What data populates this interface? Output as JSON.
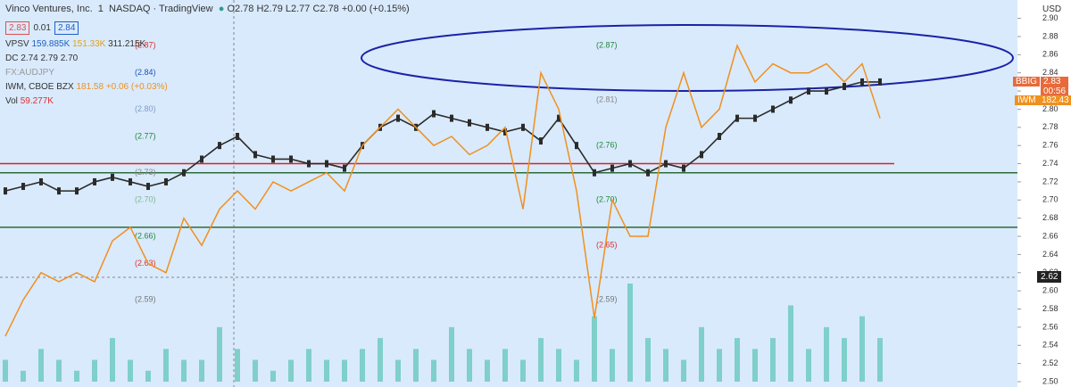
{
  "header": {
    "symbol": "Vinco Ventures, Inc.",
    "interval": "1",
    "exchange": "NASDAQ · TradingView",
    "ohlc": "O2.78 H2.79 L2.77 C2.78 +0.00 (+0.15%)",
    "bid": "2.83",
    "spread": "0.01",
    "ask": "2.84",
    "currency": "USD"
  },
  "indicators": {
    "vpsv": [
      "VPSV",
      "159.885K",
      "151.33K",
      "311.215K"
    ],
    "dc": [
      "DC",
      "2.74",
      "2.79",
      "2.70"
    ],
    "fx": "FX:AUDJPY",
    "iwm": [
      "IWM, CBOE BZX",
      "181.58 +0.06 (+0.03%)"
    ],
    "vol": [
      "Vol",
      "59.277K"
    ]
  },
  "right_labels": {
    "bbig": "BBIG",
    "bbig_price": "2.83",
    "countdown": "00:56",
    "iwm": "IWM",
    "iwm_price": "182.43",
    "crosshair": "2.62"
  },
  "chart_data": {
    "type": "line",
    "ylim": [
      2.5,
      2.9
    ],
    "yticks": [
      {
        "value": 2.5,
        "label": "2.50"
      },
      {
        "value": 2.52,
        "label": "2.52"
      },
      {
        "value": 2.54,
        "label": "2.54"
      },
      {
        "value": 2.56,
        "label": "2.56"
      },
      {
        "value": 2.58,
        "label": "2.58"
      },
      {
        "value": 2.6,
        "label": "2.60"
      },
      {
        "value": 2.62,
        "label": "2.62"
      },
      {
        "value": 2.64,
        "label": "2.64"
      },
      {
        "value": 2.66,
        "label": "2.66"
      },
      {
        "value": 2.68,
        "label": "2.68"
      },
      {
        "value": 2.7,
        "label": "2.70"
      },
      {
        "value": 2.72,
        "label": "2.72"
      },
      {
        "value": 2.74,
        "label": "2.74"
      },
      {
        "value": 2.76,
        "label": "2.76"
      },
      {
        "value": 2.78,
        "label": "2.78"
      },
      {
        "value": 2.8,
        "label": "2.80"
      },
      {
        "value": 2.82,
        "label": "2.82"
      },
      {
        "value": 2.84,
        "label": "2.84"
      },
      {
        "value": 2.86,
        "label": "2.86"
      },
      {
        "value": 2.88,
        "label": "2.88"
      },
      {
        "value": 2.9,
        "label": "2.90"
      }
    ],
    "series": [
      {
        "name": "BBIG",
        "color": "#2b2b2b",
        "values": [
          2.71,
          2.715,
          2.72,
          2.71,
          2.71,
          2.72,
          2.725,
          2.72,
          2.715,
          2.72,
          2.73,
          2.745,
          2.76,
          2.77,
          2.75,
          2.745,
          2.745,
          2.74,
          2.74,
          2.735,
          2.76,
          2.78,
          2.79,
          2.78,
          2.795,
          2.79,
          2.785,
          2.78,
          2.775,
          2.78,
          2.765,
          2.79,
          2.76,
          2.73,
          2.735,
          2.74,
          2.73,
          2.74,
          2.735,
          2.75,
          2.77,
          2.79,
          2.79,
          2.8,
          2.81,
          2.82,
          2.82,
          2.825,
          2.83,
          2.83
        ]
      },
      {
        "name": "IWM",
        "color": "#f0901e",
        "values": [
          2.55,
          2.59,
          2.62,
          2.61,
          2.62,
          2.61,
          2.655,
          2.67,
          2.63,
          2.62,
          2.68,
          2.65,
          2.69,
          2.71,
          2.69,
          2.72,
          2.71,
          2.72,
          2.73,
          2.71,
          2.76,
          2.78,
          2.8,
          2.78,
          2.76,
          2.77,
          2.75,
          2.76,
          2.78,
          2.69,
          2.84,
          2.8,
          2.71,
          2.57,
          2.7,
          2.66,
          2.66,
          2.78,
          2.84,
          2.78,
          2.8,
          2.87,
          2.83,
          2.85,
          2.84,
          2.84,
          2.85,
          2.83,
          2.85,
          2.79
        ]
      }
    ],
    "volume": {
      "color": "#7fcfca",
      "values": [
        2,
        1,
        3,
        2,
        1,
        2,
        4,
        2,
        1,
        3,
        2,
        2,
        5,
        3,
        2,
        1,
        2,
        3,
        2,
        2,
        3,
        4,
        2,
        3,
        2,
        5,
        3,
        2,
        3,
        2,
        4,
        3,
        2,
        6,
        3,
        9,
        4,
        3,
        2,
        5,
        3,
        4,
        3,
        4,
        7,
        3,
        5,
        4,
        6,
        4
      ]
    },
    "hlines": [
      {
        "value": 2.74,
        "color": "#e02020"
      },
      {
        "value": 2.73,
        "color": "#2e6b3a"
      },
      {
        "value": 2.67,
        "color": "#2e6b3a"
      }
    ],
    "annotations": [
      {
        "value": 2.87,
        "label": "(2.87)",
        "color": "#e03030"
      },
      {
        "value": 2.84,
        "label": "(2.84)",
        "color": "#2050c0"
      },
      {
        "value": 2.8,
        "label": "(2.80)",
        "color": "#7f9bc8"
      },
      {
        "value": 2.77,
        "label": "(2.77)",
        "color": "#1f8a3a"
      },
      {
        "value": 2.73,
        "label": "(2.73)",
        "color": "#888888"
      },
      {
        "value": 2.7,
        "label": "(2.70)",
        "color": "#7fb88f"
      },
      {
        "value": 2.66,
        "label": "(2.66)",
        "color": "#1f8a3a"
      },
      {
        "value": 2.63,
        "label": "(2.63)",
        "color": "#e03030"
      },
      {
        "value": 2.59,
        "label": "(2.59)",
        "color": "#777777"
      },
      {
        "value": 2.87,
        "label": "(2.87)",
        "color": "#1f8a3a"
      },
      {
        "value": 2.81,
        "label": "(2.81)",
        "color": "#888888"
      },
      {
        "value": 2.76,
        "label": "(2.76)",
        "color": "#1f8a3a"
      },
      {
        "value": 2.7,
        "label": "(2.70)",
        "color": "#1f8a3a"
      },
      {
        "value": 2.65,
        "label": "(2.65)",
        "color": "#e03030"
      },
      {
        "value": 2.59,
        "label": "(2.59)",
        "color": "#777777"
      }
    ]
  }
}
